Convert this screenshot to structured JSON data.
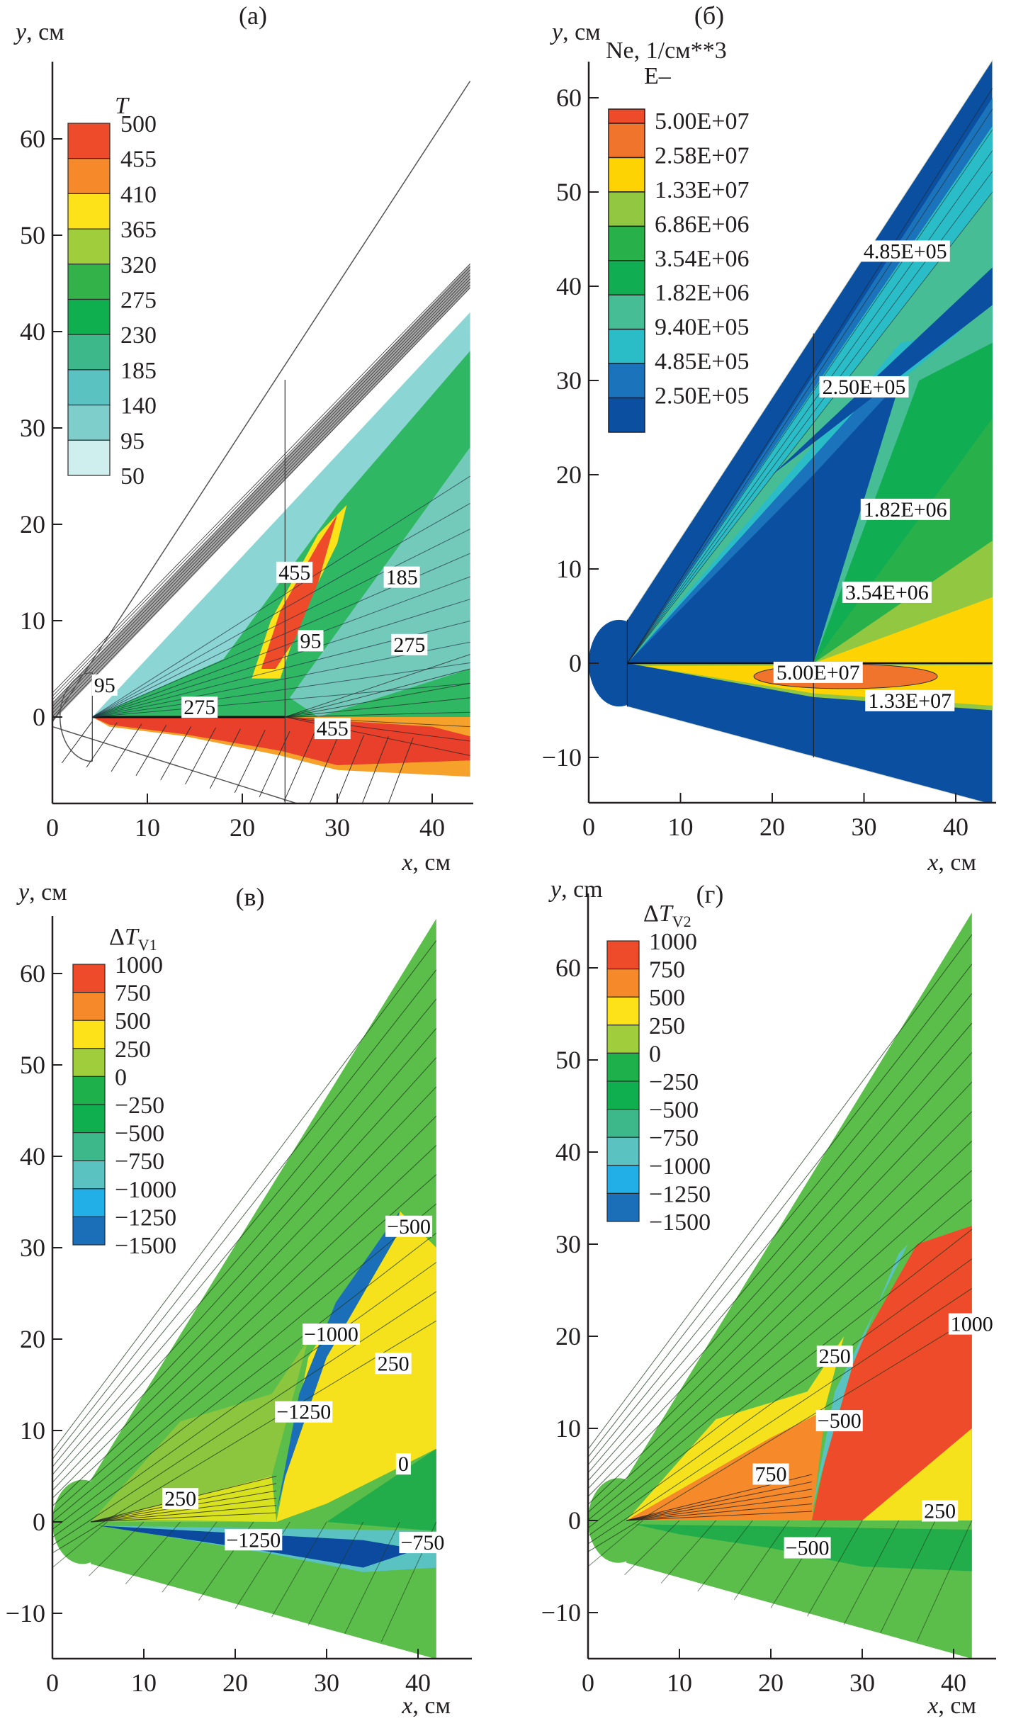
{
  "chart_data": [
    {
      "id": "a",
      "type": "heatmap",
      "panel_label": "(a)",
      "title": "",
      "xlabel_var": "x",
      "xlabel_unit": ", см",
      "ylabel_var": "y",
      "ylabel_unit": ", см",
      "xlim": [
        0,
        44
      ],
      "ylim": [
        -9,
        66
      ],
      "xticks": [
        0,
        10,
        20,
        30,
        40
      ],
      "yticks": [
        0,
        10,
        20,
        30,
        40,
        50,
        60
      ],
      "colorbar": {
        "title_var": "T",
        "title_sub": "",
        "title_extra": "",
        "levels": [
          "500",
          "455",
          "410",
          "365",
          "320",
          "275",
          "230",
          "185",
          "140",
          "95",
          "50"
        ],
        "colors": [
          "#ee4b2b",
          "#f68a2a",
          "#fde21a",
          "#9fcd3c",
          "#34b24a",
          "#0fae4f",
          "#3cb88a",
          "#5ac3c2",
          "#7ecfcc",
          "#cfeeee",
          "#ffffff"
        ]
      },
      "contour_labels": [
        {
          "text": "455",
          "x": 25.5,
          "y": 14.5
        },
        {
          "text": "185",
          "x": 36.8,
          "y": 14.0
        },
        {
          "text": "95",
          "x": 27.2,
          "y": 7.4
        },
        {
          "text": "275",
          "x": 37.6,
          "y": 7.0
        },
        {
          "text": "95",
          "x": 5.5,
          "y": 2.8
        },
        {
          "text": "275",
          "x": 15.5,
          "y": 0.5
        },
        {
          "text": "455",
          "x": 29.5,
          "y": -1.7
        }
      ],
      "style": "streamlines"
    },
    {
      "id": "b",
      "type": "heatmap",
      "panel_label": "(б)",
      "title": "",
      "xlabel_var": "x",
      "xlabel_unit": ", см",
      "ylabel_var": "y",
      "ylabel_unit": ", см",
      "xlim": [
        0,
        44
      ],
      "ylim": [
        -15,
        66
      ],
      "xticks": [
        0,
        10,
        20,
        30,
        40
      ],
      "yticks": [
        -10,
        0,
        10,
        20,
        30,
        40,
        50,
        60
      ],
      "colorbar": {
        "title_var": "Ne, 1/см**3",
        "title_sub": "",
        "title_extra": "E–",
        "levels": [
          "5.00E+07",
          "2.58E+07",
          "1.33E+07",
          "6.86E+06",
          "3.54E+06",
          "1.82E+06",
          "9.40E+05",
          "4.85E+05",
          "2.50E+05"
        ],
        "colors": [
          "#ee4b2b",
          "#f1742c",
          "#fed304",
          "#92c741",
          "#28b04a",
          "#10ad52",
          "#47bd95",
          "#2bbdc7",
          "#1a73bb",
          "#0b4fa0"
        ]
      },
      "contour_labels": [
        {
          "text": "4.85E+05",
          "x": 34.5,
          "y": 43.2
        },
        {
          "text": "2.50E+05",
          "x": 30.0,
          "y": 28.8
        },
        {
          "text": "1.82E+06",
          "x": 34.5,
          "y": 15.8
        },
        {
          "text": "3.54E+06",
          "x": 32.5,
          "y": 7.0
        },
        {
          "text": "5.00E+07",
          "x": 25.0,
          "y": -1.5
        },
        {
          "text": "1.33E+07",
          "x": 35.0,
          "y": -4.5
        }
      ],
      "extra_label": {
        "var": "y",
        "unit": ", cm"
      },
      "style": "filled-contour"
    },
    {
      "id": "v",
      "type": "heatmap",
      "panel_label": "(в)",
      "title": "",
      "xlabel_var": "x",
      "xlabel_unit": ", см",
      "ylabel_var": "y",
      "ylabel_unit": ", см",
      "xlim": [
        0,
        44
      ],
      "ylim": [
        -15,
        66
      ],
      "xticks": [
        0,
        10,
        20,
        30,
        40
      ],
      "yticks": [
        -10,
        0,
        10,
        20,
        30,
        40,
        50,
        60
      ],
      "colorbar": {
        "title_var": "ΔT",
        "title_sub": "V1",
        "title_extra": "",
        "levels": [
          "1000",
          "750",
          "500",
          "250",
          "0",
          "−250",
          "−500",
          "−750",
          "−1000",
          "−1250",
          "−1500"
        ],
        "colors": [
          "#ee4b2b",
          "#f68a2a",
          "#fde21a",
          "#9fcd3c",
          "#1db04b",
          "#0fae4f",
          "#3cb88a",
          "#5ac3c2",
          "#22aee6",
          "#1b6fb9",
          "#0c4aa0"
        ]
      },
      "contour_labels": [
        {
          "text": "−500",
          "x": 39.0,
          "y": 31.8
        },
        {
          "text": "−1000",
          "x": 30.5,
          "y": 20.0
        },
        {
          "text": "−1250",
          "x": 27.5,
          "y": 11.5
        },
        {
          "text": "250",
          "x": 37.3,
          "y": 16.8
        },
        {
          "text": "0",
          "x": 38.4,
          "y": 5.8
        },
        {
          "text": "250",
          "x": 14.0,
          "y": 2.0
        },
        {
          "text": "−1250",
          "x": 22.0,
          "y": -2.5
        },
        {
          "text": "−750",
          "x": 40.5,
          "y": -2.8
        }
      ],
      "style": "streamlines"
    },
    {
      "id": "g",
      "type": "heatmap",
      "panel_label": "(г)",
      "title": "",
      "xlabel_var": "x",
      "xlabel_unit": ", см",
      "ylabel_var": "y",
      "ylabel_unit": ", cm",
      "xlim": [
        0,
        44
      ],
      "ylim": [
        -15,
        66
      ],
      "xticks": [
        0,
        10,
        20,
        30,
        40
      ],
      "yticks": [
        -10,
        0,
        10,
        20,
        30,
        40,
        50,
        60
      ],
      "colorbar": {
        "title_var": "ΔT",
        "title_sub": "V2",
        "title_extra": "",
        "levels": [
          "1000",
          "750",
          "500",
          "250",
          "0",
          "−250",
          "−500",
          "−750",
          "−1000",
          "−1250",
          "−1500"
        ],
        "colors": [
          "#ee4b2b",
          "#f68a2a",
          "#fde21a",
          "#9fcd3c",
          "#1db04b",
          "#0fae4f",
          "#3cb88a",
          "#5ac3c2",
          "#22aee6",
          "#1b6fb9",
          "#0c4aa0"
        ]
      },
      "contour_labels": [
        {
          "text": "1000",
          "x": 42.0,
          "y": 20.8
        },
        {
          "text": "250",
          "x": 27.0,
          "y": 17.3
        },
        {
          "text": "−500",
          "x": 27.5,
          "y": 10.3
        },
        {
          "text": "750",
          "x": 20.0,
          "y": 4.5
        },
        {
          "text": "250",
          "x": 38.5,
          "y": 0.5
        },
        {
          "text": "−500",
          "x": 24.0,
          "y": -3.5
        }
      ],
      "style": "streamlines"
    }
  ]
}
